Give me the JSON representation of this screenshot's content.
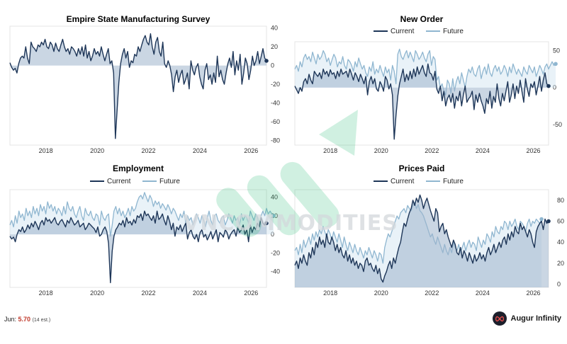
{
  "watermark": "VNCOMMODITIES",
  "footer": {
    "label": "Jun:",
    "value": "5.70",
    "note": "(14 est.)"
  },
  "brand": {
    "name": "Augur Infinity",
    "logo_icon": "infinity-logo-icon"
  },
  "colors": {
    "current": "#1e3658",
    "future": "#8fb6d0",
    "fill_current": "#9fb4cc",
    "fill_future": "#cfe2ef"
  },
  "chart_data": [
    {
      "type": "line",
      "title": "Empire State Manufacturing Survey",
      "x_start": 2016.6,
      "x_end": 2026.6,
      "xticks": [
        "2018",
        "2020",
        "2022",
        "2024",
        "2026"
      ],
      "ylim": [
        -85,
        42
      ],
      "yticks": [
        40,
        20,
        0,
        -20,
        -40,
        -60,
        -80
      ],
      "legend": [],
      "series": [
        {
          "name": "",
          "role": "current",
          "values": [
            3,
            -2,
            -5,
            -3,
            -8,
            2,
            8,
            10,
            8,
            20,
            8,
            2,
            25,
            20,
            18,
            15,
            22,
            20,
            25,
            22,
            28,
            20,
            18,
            25,
            22,
            15,
            24,
            18,
            15,
            22,
            28,
            20,
            15,
            18,
            12,
            20,
            18,
            15,
            10,
            18,
            12,
            20,
            10,
            22,
            8,
            15,
            5,
            10,
            18,
            12,
            15,
            10,
            20,
            12,
            5,
            12,
            18,
            2,
            5,
            -8,
            -78,
            -48,
            -18,
            2,
            12,
            18,
            8,
            15,
            -2,
            5,
            3,
            12,
            10,
            20,
            15,
            22,
            28,
            32,
            25,
            22,
            34,
            20,
            12,
            25,
            30,
            15,
            10,
            25,
            2,
            -2,
            5,
            0,
            -10,
            -28,
            -12,
            -5,
            -18,
            -10,
            -5,
            -20,
            -15,
            -8,
            -25,
            5,
            -5,
            -10,
            -2,
            2,
            -12,
            -20,
            -25,
            -5,
            2,
            -15,
            -10,
            -20,
            -8,
            -18,
            10,
            -12,
            -5,
            -15,
            -20,
            -8,
            2,
            8,
            -2,
            15,
            -10,
            5,
            -5,
            12,
            -20,
            -8,
            8,
            2,
            -15,
            -5,
            10,
            0,
            5,
            15,
            2,
            10,
            18,
            8,
            5
          ]
        }
      ]
    },
    {
      "type": "line",
      "title": "New Order",
      "x_start": 2016.6,
      "x_end": 2026.6,
      "xticks": [
        "2018",
        "2020",
        "2022",
        "2024",
        "2026"
      ],
      "ylim": [
        -78,
        62
      ],
      "yticks": [
        50,
        0,
        -50
      ],
      "legend": [
        "Current",
        "Future"
      ],
      "series": [
        {
          "name": "Current",
          "role": "current",
          "values": [
            2,
            -3,
            -8,
            0,
            -5,
            8,
            12,
            5,
            18,
            10,
            5,
            22,
            18,
            15,
            20,
            12,
            25,
            18,
            22,
            15,
            24,
            18,
            20,
            12,
            22,
            15,
            25,
            18,
            20,
            22,
            14,
            25,
            18,
            10,
            20,
            15,
            8,
            18,
            12,
            5,
            15,
            -10,
            8,
            15,
            5,
            12,
            -2,
            -5,
            8,
            3,
            -5,
            15,
            10,
            -2,
            5,
            -10,
            -70,
            -38,
            -12,
            5,
            15,
            25,
            8,
            18,
            10,
            22,
            12,
            25,
            15,
            28,
            18,
            24,
            30,
            20,
            15,
            32,
            20,
            18,
            10,
            22,
            -2,
            -8,
            2,
            -18,
            -5,
            -25,
            -15,
            -10,
            -20,
            -8,
            -28,
            -12,
            -18,
            -5,
            -25,
            -10,
            2,
            -20,
            -15,
            -12,
            -5,
            -30,
            -10,
            -20,
            -8,
            -18,
            -25,
            -35,
            -15,
            -22,
            -5,
            -28,
            -12,
            -20,
            5,
            -15,
            -25,
            -8,
            -18,
            -5,
            8,
            -20,
            -10,
            5,
            -15,
            2,
            -8,
            10,
            -5,
            -20,
            12,
            -2,
            -12,
            5,
            0,
            8,
            -10,
            2,
            15,
            -5,
            10,
            20,
            5,
            2
          ]
        },
        {
          "name": "Future",
          "role": "future",
          "values": [
            25,
            30,
            22,
            35,
            28,
            40,
            45,
            38,
            42,
            35,
            48,
            40,
            32,
            45,
            38,
            42,
            50,
            45,
            35,
            40,
            30,
            38,
            45,
            40,
            28,
            35,
            32,
            42,
            30,
            25,
            38,
            35,
            30,
            22,
            35,
            28,
            40,
            32,
            25,
            30,
            20,
            15,
            28,
            22,
            35,
            18,
            25,
            20,
            30,
            22,
            15,
            28,
            20,
            25,
            10,
            30,
            22,
            5,
            45,
            52,
            42,
            38,
            45,
            50,
            40,
            48,
            42,
            35,
            50,
            45,
            38,
            42,
            48,
            40,
            35,
            45,
            50,
            30,
            42,
            38,
            10,
            15,
            0,
            5,
            -5,
            -10,
            10,
            5,
            -8,
            12,
            -5,
            8,
            15,
            5,
            20,
            10,
            0,
            15,
            25,
            20,
            28,
            18,
            15,
            25,
            30,
            12,
            22,
            28,
            18,
            32,
            20,
            15,
            25,
            30,
            22,
            28,
            18,
            22,
            30,
            25,
            15,
            28,
            20,
            32,
            25,
            18,
            25,
            20,
            15,
            28,
            22,
            18,
            30,
            25,
            20,
            28,
            15,
            22,
            30,
            25,
            18,
            28,
            32,
            25,
            30,
            35,
            30,
            32
          ]
        }
      ]
    },
    {
      "type": "line",
      "title": "Employment",
      "x_start": 2016.6,
      "x_end": 2026.6,
      "xticks": [
        "2018",
        "2020",
        "2022",
        "2024",
        "2026"
      ],
      "ylim": [
        -57,
        48
      ],
      "yticks": [
        40,
        20,
        0,
        -20,
        -40
      ],
      "legend": [
        "Current",
        "Future"
      ],
      "series": [
        {
          "name": "Current",
          "role": "current",
          "values": [
            -2,
            -5,
            -3,
            -8,
            0,
            5,
            3,
            8,
            2,
            5,
            10,
            6,
            12,
            8,
            14,
            10,
            5,
            12,
            15,
            10,
            18,
            14,
            16,
            12,
            15,
            18,
            12,
            10,
            14,
            16,
            12,
            8,
            15,
            12,
            18,
            14,
            10,
            12,
            15,
            8,
            10,
            12,
            5,
            8,
            12,
            10,
            8,
            6,
            2,
            8,
            -2,
            0,
            5,
            8,
            3,
            -10,
            -52,
            -18,
            -2,
            5,
            8,
            12,
            10,
            15,
            8,
            18,
            12,
            14,
            10,
            16,
            12,
            20,
            18,
            22,
            15,
            25,
            20,
            22,
            18,
            15,
            20,
            12,
            25,
            16,
            18,
            22,
            15,
            10,
            20,
            14,
            5,
            12,
            -2,
            8,
            5,
            10,
            3,
            8,
            12,
            -5,
            2,
            5,
            -2,
            -5,
            0,
            -8,
            2,
            5,
            -3,
            0,
            -6,
            -2,
            3,
            -5,
            0,
            5,
            -8,
            2,
            0,
            -3,
            5,
            2,
            -5,
            0,
            3,
            5,
            -2,
            8,
            2,
            5,
            10,
            0,
            5,
            -8,
            10,
            2,
            8,
            5,
            12,
            8,
            18,
            12,
            10,
            12
          ]
        },
        {
          "name": "Future",
          "role": "future",
          "values": [
            10,
            15,
            8,
            20,
            12,
            25,
            18,
            22,
            15,
            28,
            20,
            25,
            18,
            30,
            22,
            28,
            20,
            32,
            25,
            30,
            22,
            35,
            28,
            32,
            25,
            30,
            22,
            28,
            25,
            20,
            30,
            22,
            35,
            28,
            25,
            30,
            22,
            18,
            25,
            30,
            20,
            15,
            28,
            22,
            20,
            25,
            18,
            15,
            22,
            20,
            10,
            25,
            18,
            15,
            20,
            22,
            -2,
            10,
            25,
            30,
            22,
            28,
            20,
            25,
            18,
            22,
            28,
            20,
            30,
            25,
            28,
            35,
            40,
            42,
            38,
            45,
            40,
            35,
            42,
            38,
            30,
            36,
            32,
            35,
            28,
            33,
            30,
            26,
            32,
            28,
            22,
            28,
            25,
            20,
            15,
            22,
            18,
            25,
            12,
            20,
            15,
            18,
            10,
            15,
            22,
            18,
            12,
            20,
            15,
            8,
            18,
            25,
            15,
            10,
            20,
            22,
            15,
            12,
            18,
            20,
            10,
            15,
            22,
            18,
            12,
            20,
            15,
            18,
            10,
            22,
            15,
            20,
            18,
            12,
            25,
            20,
            15,
            22,
            18,
            10,
            20,
            25,
            20,
            28,
            22,
            25,
            22,
            20
          ]
        }
      ]
    },
    {
      "type": "line",
      "title": "Prices Paid",
      "x_start": 2016.6,
      "x_end": 2026.6,
      "xticks": [
        "2018",
        "2020",
        "2022",
        "2024",
        "2026"
      ],
      "ylim": [
        -3,
        90
      ],
      "yticks": [
        80,
        60,
        40,
        20,
        0
      ],
      "legend": [
        "Current",
        "Future"
      ],
      "series": [
        {
          "name": "Current",
          "role": "current",
          "values": [
            18,
            22,
            15,
            25,
            20,
            28,
            22,
            18,
            30,
            25,
            35,
            28,
            40,
            35,
            45,
            38,
            42,
            35,
            48,
            40,
            38,
            45,
            40,
            32,
            38,
            30,
            35,
            28,
            25,
            32,
            22,
            28,
            20,
            25,
            18,
            22,
            15,
            20,
            18,
            12,
            22,
            25,
            18,
            20,
            15,
            12,
            18,
            10,
            15,
            5,
            2,
            8,
            12,
            18,
            22,
            15,
            25,
            20,
            28,
            35,
            40,
            50,
            58,
            55,
            62,
            68,
            72,
            80,
            75,
            82,
            78,
            85,
            80,
            72,
            78,
            82,
            76,
            70,
            65,
            60,
            72,
            68,
            50,
            55,
            58,
            48,
            52,
            45,
            40,
            35,
            42,
            38,
            30,
            28,
            35,
            25,
            32,
            28,
            22,
            30,
            25,
            20,
            28,
            22,
            25,
            30,
            24,
            28,
            22,
            30,
            35,
            28,
            32,
            38,
            30,
            35,
            40,
            35,
            42,
            45,
            38,
            48,
            42,
            50,
            45,
            55,
            50,
            48,
            58,
            52,
            55,
            50,
            45,
            52,
            48,
            40,
            35,
            50,
            55,
            58,
            60,
            52,
            62,
            58,
            60
          ]
        },
        {
          "name": "Future",
          "role": "future",
          "values": [
            32,
            35,
            28,
            38,
            30,
            42,
            35,
            40,
            45,
            38,
            48,
            42,
            50,
            45,
            52,
            48,
            55,
            50,
            45,
            52,
            48,
            42,
            50,
            45,
            40,
            48,
            42,
            35,
            45,
            38,
            32,
            40,
            35,
            30,
            38,
            32,
            28,
            35,
            30,
            25,
            32,
            28,
            35,
            30,
            25,
            32,
            28,
            22,
            30,
            28,
            20,
            35,
            42,
            48,
            45,
            50,
            55,
            60,
            65,
            62,
            68,
            70,
            72,
            68,
            75,
            72,
            70,
            75,
            78,
            72,
            76,
            70,
            68,
            65,
            60,
            55,
            50,
            45,
            48,
            42,
            38,
            45,
            40,
            35,
            30,
            38,
            32,
            28,
            35,
            30,
            40,
            35,
            32,
            38,
            30,
            35,
            40,
            32,
            38,
            42,
            35,
            40,
            38,
            32,
            45,
            40,
            35,
            42,
            38,
            48,
            45,
            40,
            50,
            45,
            55,
            50,
            48,
            55,
            52,
            60,
            58,
            52,
            60,
            55,
            58,
            62,
            55,
            52,
            60,
            58,
            55,
            50,
            58,
            62,
            55,
            60,
            58,
            62,
            60,
            58,
            62
          ]
        }
      ]
    }
  ]
}
